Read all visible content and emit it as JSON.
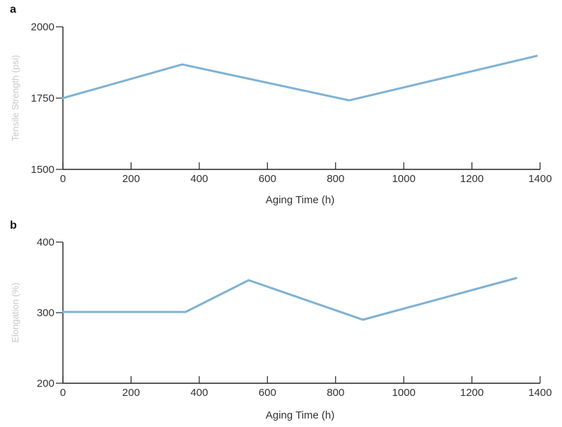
{
  "chart_data": [
    {
      "panel": "a",
      "type": "line",
      "xlabel": "Aging Time (h)",
      "ylabel": "Tensile Strength (psi)",
      "xlim": [
        0,
        1400
      ],
      "ylim": [
        1500,
        2000
      ],
      "xticks": [
        0,
        200,
        400,
        600,
        800,
        1000,
        1200,
        1400
      ],
      "yticks": [
        1500,
        1750,
        2000
      ],
      "grid": false,
      "series": [
        {
          "x": [
            0,
            350,
            840,
            1390
          ],
          "y": [
            1750,
            1868,
            1742,
            1898
          ],
          "color": "#7fb2d4"
        }
      ]
    },
    {
      "panel": "b",
      "type": "line",
      "xlabel": "Aging Time (h)",
      "ylabel": "Elongation (%)",
      "xlim": [
        0,
        1400
      ],
      "ylim": [
        200,
        400
      ],
      "xticks": [
        0,
        200,
        400,
        600,
        800,
        1000,
        1200,
        1400
      ],
      "yticks": [
        200,
        300,
        400
      ],
      "grid": false,
      "series": [
        {
          "x": [
            0,
            360,
            545,
            880,
            1330
          ],
          "y": [
            301,
            301,
            346,
            290,
            349
          ],
          "color": "#7fb2d4"
        }
      ]
    }
  ]
}
